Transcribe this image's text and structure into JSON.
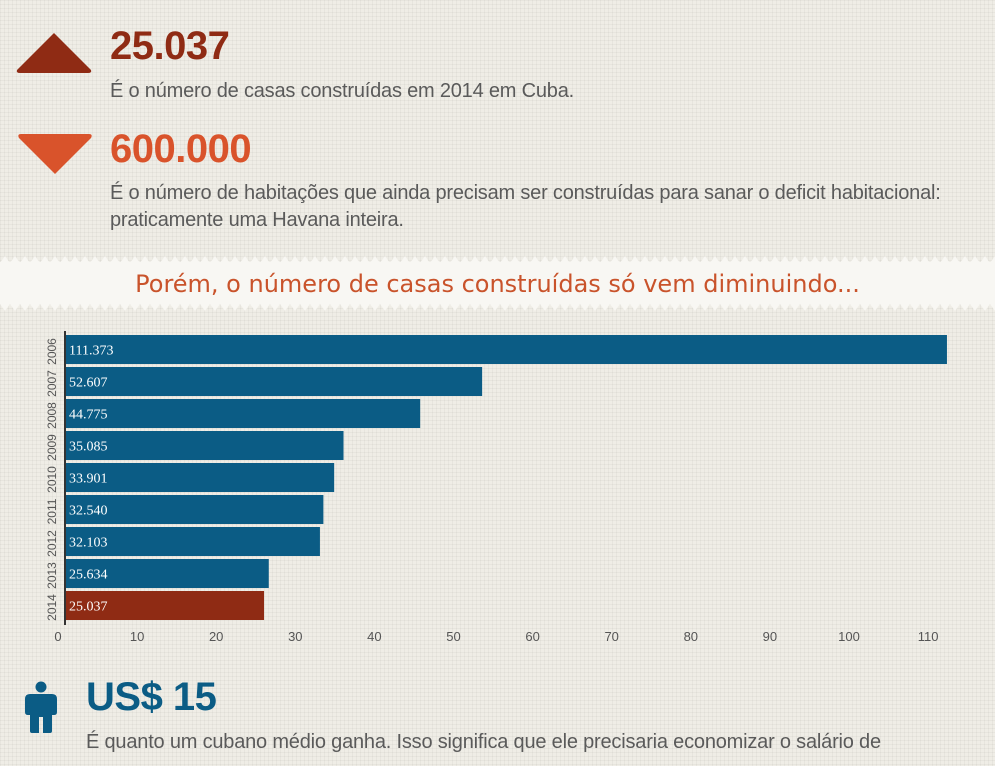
{
  "stat1": {
    "value": "25.037",
    "description": "É o número de casas construídas em 2014 em Cuba.",
    "icon": "triangle-up-icon",
    "color": "#8f2b14"
  },
  "stat2": {
    "value": "600.000",
    "description": "É o número de habitações que ainda precisam ser construídas para sanar o deficit habitacional: praticamente uma Havana inteira.",
    "icon": "triangle-down-icon",
    "color": "#d9532b"
  },
  "band_title": "Porém, o número de casas construídas só vem diminuindo...",
  "chart_data": {
    "type": "bar",
    "orientation": "horizontal",
    "categories": [
      "2006",
      "2007",
      "2008",
      "2009",
      "2010",
      "2011",
      "2012",
      "2013",
      "2014"
    ],
    "values": [
      111373,
      52607,
      44775,
      35085,
      33901,
      32540,
      32103,
      25634,
      25037
    ],
    "value_labels": [
      "111.373",
      "52.607",
      "44.775",
      "35.085",
      "33.901",
      "32.540",
      "32.103",
      "25.634",
      "25.037"
    ],
    "x_ticks": [
      "0",
      "10",
      "20",
      "30",
      "40",
      "50",
      "60",
      "70",
      "80",
      "90",
      "100",
      "110"
    ],
    "xlim": [
      0,
      112
    ],
    "x_unit_scale": 1000,
    "bar_color": "#0b5c85",
    "highlight_color": "#8f2b14",
    "highlight_category": "2014",
    "grid": false
  },
  "stat3": {
    "value": "US$ 15",
    "description": "É quanto um cubano médio ganha. Isso significa que ele precisaria economizar o salário de",
    "icon": "person-icon",
    "color": "#0b5c85"
  }
}
